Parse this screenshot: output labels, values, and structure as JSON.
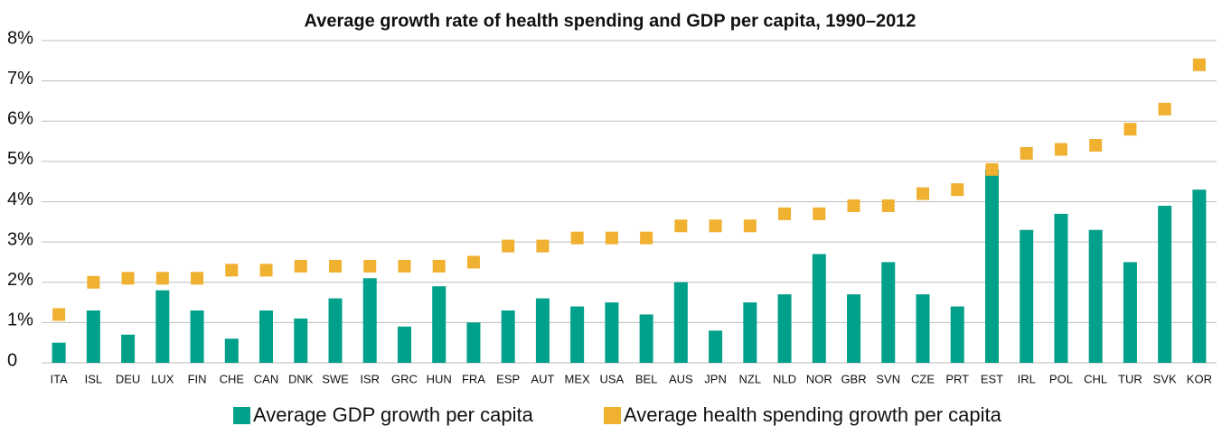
{
  "chart_data": {
    "type": "bar",
    "title": "Average growth rate of health spending and GDP per capita, 1990–2012",
    "categories": [
      "ITA",
      "ISL",
      "DEU",
      "LUX",
      "FIN",
      "CHE",
      "CAN",
      "DNK",
      "SWE",
      "ISR",
      "GRC",
      "HUN",
      "FRA",
      "ESP",
      "AUT",
      "MEX",
      "USA",
      "BEL",
      "AUS",
      "JPN",
      "NZL",
      "NLD",
      "NOR",
      "GBR",
      "SVN",
      "CZE",
      "PRT",
      "EST",
      "IRL",
      "POL",
      "CHL",
      "TUR",
      "SVK",
      "KOR"
    ],
    "series": [
      {
        "name": "Average GDP growth per capita",
        "color": "#00a08a",
        "type": "bar",
        "values": [
          0.5,
          1.3,
          0.7,
          1.8,
          1.3,
          0.6,
          1.3,
          1.1,
          1.6,
          2.1,
          0.9,
          1.9,
          1.0,
          1.3,
          1.6,
          1.4,
          1.5,
          1.2,
          2.0,
          0.8,
          1.5,
          1.7,
          2.7,
          1.7,
          2.5,
          1.7,
          1.4,
          4.8,
          3.3,
          3.7,
          3.3,
          2.5,
          3.9,
          4.3
        ]
      },
      {
        "name": "Average health spending growth per capita",
        "color": "#f0b030",
        "type": "scatter",
        "values": [
          1.2,
          2.0,
          2.1,
          2.1,
          2.1,
          2.3,
          2.3,
          2.4,
          2.4,
          2.4,
          2.4,
          2.4,
          2.5,
          2.9,
          2.9,
          3.1,
          3.1,
          3.1,
          3.4,
          3.4,
          3.4,
          3.7,
          3.7,
          3.9,
          3.9,
          4.2,
          4.3,
          4.8,
          5.2,
          5.3,
          5.4,
          5.8,
          6.3,
          7.4
        ]
      }
    ],
    "ylim": [
      0,
      8
    ],
    "yticks": [
      0,
      {
        "value": 1,
        "label": "1%"
      },
      {
        "value": 2,
        "label": "2%"
      },
      {
        "value": 3,
        "label": "3%"
      },
      {
        "value": 4,
        "label": "4%"
      },
      {
        "value": 5,
        "label": "5%"
      },
      {
        "value": 6,
        "label": "6%"
      },
      {
        "value": 7,
        "label": "7%"
      },
      {
        "value": 8,
        "label": "8%"
      }
    ],
    "grid": true
  }
}
